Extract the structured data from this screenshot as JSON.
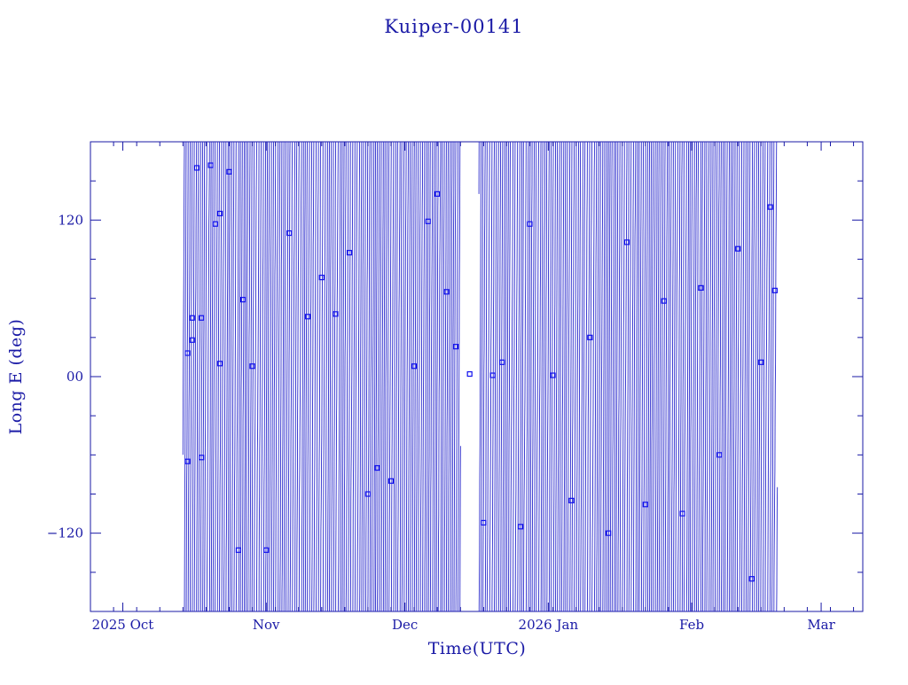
{
  "chart_data": {
    "type": "scatter",
    "title": "Kuiper-00141",
    "xlabel": "Time(UTC)",
    "ylabel": "Long E (deg)",
    "x_unit": "date",
    "xlim": [
      "2025-09-24",
      "2026-03-10"
    ],
    "ylim": [
      -180,
      180
    ],
    "x_ticks": [
      {
        "date": "2025-10-01",
        "label": "2025 Oct"
      },
      {
        "date": "2025-11-01",
        "label": "Nov"
      },
      {
        "date": "2025-12-01",
        "label": "Dec"
      },
      {
        "date": "2026-01-01",
        "label": "2026 Jan"
      },
      {
        "date": "2026-02-01",
        "label": "Feb"
      },
      {
        "date": "2026-03-01",
        "label": "Mar"
      }
    ],
    "y_ticks": [
      {
        "value": -120,
        "label": "−120"
      },
      {
        "value": 0,
        "label": "00"
      },
      {
        "value": 120,
        "label": "120"
      }
    ],
    "grid": false,
    "legend": "none",
    "series": [
      {
        "marker": "square",
        "style": "marker+line",
        "samples": [
          {
            "x": "2025-10-15",
            "y": -65
          },
          {
            "x": "2025-10-15",
            "y": 18
          },
          {
            "x": "2025-10-16",
            "y": 45
          },
          {
            "x": "2025-10-16",
            "y": 28
          },
          {
            "x": "2025-10-17",
            "y": 160
          },
          {
            "x": "2025-10-18",
            "y": 45
          },
          {
            "x": "2025-10-18",
            "y": -62
          },
          {
            "x": "2025-10-20",
            "y": 162
          },
          {
            "x": "2025-10-21",
            "y": 117
          },
          {
            "x": "2025-10-22",
            "y": 125
          },
          {
            "x": "2025-10-22",
            "y": 10
          },
          {
            "x": "2025-10-24",
            "y": 157
          },
          {
            "x": "2025-10-26",
            "y": -133
          },
          {
            "x": "2025-10-27",
            "y": 59
          },
          {
            "x": "2025-10-29",
            "y": 8
          },
          {
            "x": "2025-11-01",
            "y": -133
          },
          {
            "x": "2025-11-06",
            "y": 110
          },
          {
            "x": "2025-11-10",
            "y": 46
          },
          {
            "x": "2025-11-13",
            "y": 76
          },
          {
            "x": "2025-11-16",
            "y": 48
          },
          {
            "x": "2025-11-19",
            "y": 95
          },
          {
            "x": "2025-11-23",
            "y": -90
          },
          {
            "x": "2025-11-25",
            "y": -70
          },
          {
            "x": "2025-11-28",
            "y": -80
          },
          {
            "x": "2025-12-03",
            "y": 8
          },
          {
            "x": "2025-12-06",
            "y": 119
          },
          {
            "x": "2025-12-08",
            "y": 140
          },
          {
            "x": "2025-12-10",
            "y": 65
          },
          {
            "x": "2025-12-12",
            "y": 23
          },
          {
            "x": "2025-12-15",
            "y": 2
          },
          {
            "x": "2025-12-18",
            "y": -112
          },
          {
            "x": "2025-12-20",
            "y": 1
          },
          {
            "x": "2025-12-22",
            "y": 11
          },
          {
            "x": "2025-12-26",
            "y": -115
          },
          {
            "x": "2025-12-28",
            "y": 117
          },
          {
            "x": "2026-01-02",
            "y": 1
          },
          {
            "x": "2026-01-06",
            "y": -95
          },
          {
            "x": "2026-01-10",
            "y": 30
          },
          {
            "x": "2026-01-14",
            "y": -120
          },
          {
            "x": "2026-01-18",
            "y": 103
          },
          {
            "x": "2026-01-22",
            "y": -98
          },
          {
            "x": "2026-01-26",
            "y": 58
          },
          {
            "x": "2026-01-30",
            "y": -105
          },
          {
            "x": "2026-02-03",
            "y": 68
          },
          {
            "x": "2026-02-07",
            "y": -60
          },
          {
            "x": "2026-02-11",
            "y": 98
          },
          {
            "x": "2026-02-14",
            "y": -155
          },
          {
            "x": "2026-02-16",
            "y": 11
          },
          {
            "x": "2026-02-18",
            "y": 130
          },
          {
            "x": "2026-02-19",
            "y": 66
          }
        ]
      }
    ],
    "colors": {
      "ink": "#1a1aa6",
      "marker": "#1010ee",
      "background": "#ffffff"
    }
  }
}
